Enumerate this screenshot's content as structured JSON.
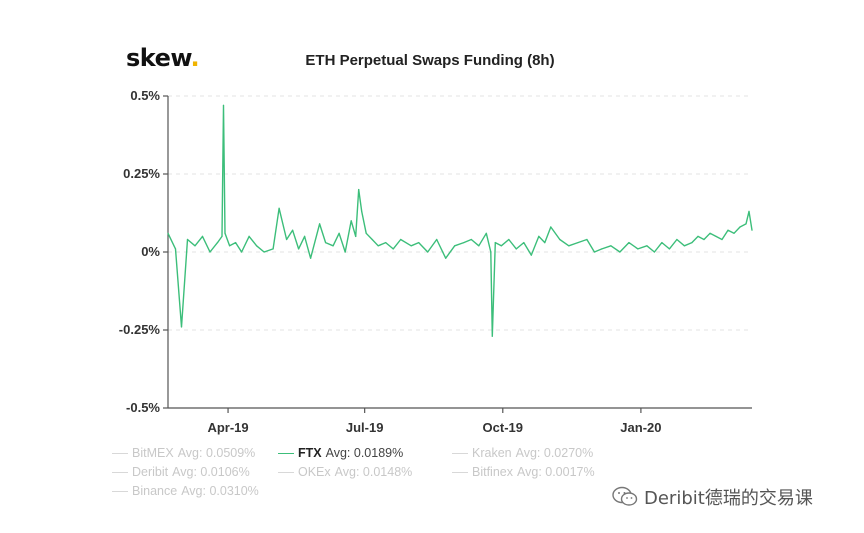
{
  "logo": {
    "text": "skew",
    "dot": ".",
    "dot_color": "#f0b400"
  },
  "chart_data": {
    "type": "line",
    "title": "ETH Perpetual Swaps Funding (8h)",
    "xlabel": "",
    "ylabel": "",
    "ylim": [
      -0.5,
      0.5
    ],
    "y_ticks": [
      "0.5%",
      "0.25%",
      "0%",
      "-0.25%",
      "-0.5%"
    ],
    "y_tick_values": [
      0.5,
      0.25,
      0,
      -0.25,
      -0.5
    ],
    "x_ticks": [
      "Apr-19",
      "Jul-19",
      "Oct-19",
      "Jan-20"
    ],
    "x_tick_dates": [
      "2019-04-01",
      "2019-07-01",
      "2019-10-01",
      "2020-01-01"
    ],
    "x_range": [
      "2019-02-20",
      "2020-03-15"
    ],
    "grid": true,
    "legend_placement": "bottom",
    "series": [
      {
        "name": "FTX",
        "color": "#3cbe7a",
        "x": [
          "2019-02-20",
          "2019-02-25",
          "2019-03-01",
          "2019-03-05",
          "2019-03-10",
          "2019-03-15",
          "2019-03-20",
          "2019-03-25",
          "2019-03-28",
          "2019-03-29",
          "2019-03-30",
          "2019-04-02",
          "2019-04-06",
          "2019-04-10",
          "2019-04-15",
          "2019-04-20",
          "2019-04-25",
          "2019-05-01",
          "2019-05-05",
          "2019-05-10",
          "2019-05-14",
          "2019-05-18",
          "2019-05-22",
          "2019-05-26",
          "2019-06-01",
          "2019-06-05",
          "2019-06-10",
          "2019-06-14",
          "2019-06-18",
          "2019-06-22",
          "2019-06-25",
          "2019-06-27",
          "2019-06-29",
          "2019-07-02",
          "2019-07-06",
          "2019-07-10",
          "2019-07-15",
          "2019-07-20",
          "2019-07-25",
          "2019-08-01",
          "2019-08-06",
          "2019-08-12",
          "2019-08-18",
          "2019-08-24",
          "2019-08-30",
          "2019-09-05",
          "2019-09-10",
          "2019-09-15",
          "2019-09-20",
          "2019-09-23",
          "2019-09-24",
          "2019-09-26",
          "2019-09-30",
          "2019-10-05",
          "2019-10-10",
          "2019-10-15",
          "2019-10-20",
          "2019-10-25",
          "2019-10-29",
          "2019-11-02",
          "2019-11-08",
          "2019-11-14",
          "2019-11-20",
          "2019-11-26",
          "2019-12-01",
          "2019-12-06",
          "2019-12-12",
          "2019-12-18",
          "2019-12-24",
          "2019-12-30",
          "2020-01-05",
          "2020-01-10",
          "2020-01-15",
          "2020-01-20",
          "2020-01-25",
          "2020-01-30",
          "2020-02-04",
          "2020-02-08",
          "2020-02-12",
          "2020-02-16",
          "2020-02-20",
          "2020-02-24",
          "2020-02-28",
          "2020-03-03",
          "2020-03-07",
          "2020-03-11",
          "2020-03-13",
          "2020-03-15"
        ],
        "values": [
          0.06,
          0.01,
          -0.24,
          0.04,
          0.02,
          0.05,
          0.0,
          0.03,
          0.05,
          0.47,
          0.06,
          0.02,
          0.03,
          0.0,
          0.05,
          0.02,
          0.0,
          0.01,
          0.14,
          0.04,
          0.07,
          0.01,
          0.05,
          -0.02,
          0.09,
          0.03,
          0.02,
          0.06,
          0.0,
          0.1,
          0.05,
          0.2,
          0.13,
          0.06,
          0.04,
          0.02,
          0.03,
          0.01,
          0.04,
          0.02,
          0.03,
          0.0,
          0.04,
          -0.02,
          0.02,
          0.03,
          0.04,
          0.02,
          0.06,
          0.0,
          -0.27,
          0.03,
          0.02,
          0.04,
          0.01,
          0.03,
          -0.01,
          0.05,
          0.03,
          0.08,
          0.04,
          0.02,
          0.03,
          0.04,
          0.0,
          0.01,
          0.02,
          0.0,
          0.03,
          0.01,
          0.02,
          0.0,
          0.03,
          0.01,
          0.04,
          0.02,
          0.03,
          0.05,
          0.04,
          0.06,
          0.05,
          0.04,
          0.07,
          0.06,
          0.08,
          0.09,
          0.13,
          0.07
        ]
      }
    ]
  },
  "legend": {
    "items": [
      {
        "name": "BitMEX",
        "avg": "Avg: 0.0509%",
        "active": false
      },
      {
        "name": "FTX",
        "avg": "Avg: 0.0189%",
        "active": true
      },
      {
        "name": "Kraken",
        "avg": "Avg: 0.0270%",
        "active": false
      },
      {
        "name": "Deribit",
        "avg": "Avg: 0.0106%",
        "active": false
      },
      {
        "name": "OKEx",
        "avg": "Avg: 0.0148%",
        "active": false
      },
      {
        "name": "Bitfinex",
        "avg": "Avg: 0.0017%",
        "active": false
      },
      {
        "name": "Binance",
        "avg": "Avg: 0.0310%",
        "active": false
      }
    ]
  },
  "watermark": {
    "text": "Deribit德瑞的交易课",
    "icon": "wechat-icon"
  }
}
